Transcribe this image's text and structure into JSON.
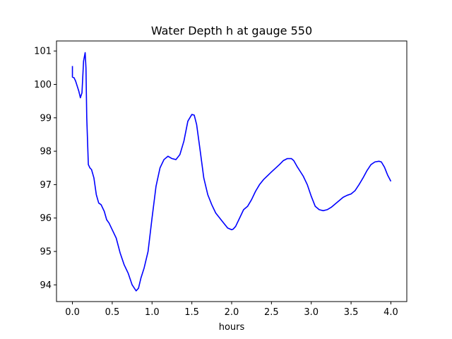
{
  "chart_data": {
    "type": "line",
    "title": "Water Depth h at gauge 550",
    "xlabel": "hours",
    "ylabel": "",
    "xlim": [
      -0.2,
      4.2
    ],
    "ylim": [
      93.5,
      101.3
    ],
    "xticks": [
      0.0,
      0.5,
      1.0,
      1.5,
      2.0,
      2.5,
      3.0,
      3.5,
      4.0
    ],
    "xtick_labels": [
      "0.0",
      "0.5",
      "1.0",
      "1.5",
      "2.0",
      "2.5",
      "3.0",
      "3.5",
      "4.0"
    ],
    "yticks": [
      94,
      95,
      96,
      97,
      98,
      99,
      100,
      101
    ],
    "ytick_labels": [
      "94",
      "95",
      "96",
      "97",
      "98",
      "99",
      "100",
      "101"
    ],
    "grid": false,
    "color": "#0000ff",
    "series": [
      {
        "x": [
          0.0,
          0.0,
          0.02,
          0.04,
          0.06,
          0.08,
          0.1,
          0.12,
          0.14,
          0.16,
          0.17,
          0.18,
          0.2,
          0.22,
          0.24,
          0.27,
          0.3,
          0.33,
          0.36,
          0.4,
          0.43,
          0.46,
          0.5,
          0.55,
          0.6,
          0.65,
          0.7,
          0.75,
          0.8,
          0.83,
          0.86,
          0.9,
          0.95,
          1.0,
          1.05,
          1.1,
          1.15,
          1.2,
          1.25,
          1.3,
          1.35,
          1.4,
          1.45,
          1.5,
          1.53,
          1.56,
          1.6,
          1.65,
          1.7,
          1.75,
          1.8,
          1.85,
          1.9,
          1.95,
          2.0,
          2.02,
          2.05,
          2.1,
          2.15,
          2.2,
          2.25,
          2.3,
          2.35,
          2.4,
          2.5,
          2.6,
          2.65,
          2.7,
          2.75,
          2.78,
          2.82,
          2.86,
          2.9,
          2.95,
          3.0,
          3.05,
          3.1,
          3.15,
          3.2,
          3.25,
          3.3,
          3.35,
          3.4,
          3.45,
          3.5,
          3.55,
          3.6,
          3.65,
          3.7,
          3.75,
          3.8,
          3.85,
          3.88,
          3.92,
          3.96,
          4.0
        ],
        "y": [
          100.55,
          100.22,
          100.2,
          100.1,
          99.95,
          99.8,
          99.6,
          99.75,
          100.7,
          100.95,
          100.5,
          99.0,
          97.6,
          97.5,
          97.45,
          97.2,
          96.7,
          96.45,
          96.4,
          96.2,
          95.95,
          95.85,
          95.65,
          95.4,
          94.95,
          94.6,
          94.35,
          94.0,
          93.82,
          93.9,
          94.2,
          94.5,
          95.0,
          96.0,
          96.95,
          97.5,
          97.75,
          97.85,
          97.78,
          97.75,
          97.9,
          98.3,
          98.9,
          99.1,
          99.08,
          98.8,
          98.1,
          97.2,
          96.7,
          96.4,
          96.15,
          96.0,
          95.85,
          95.7,
          95.65,
          95.67,
          95.75,
          96.0,
          96.25,
          96.35,
          96.55,
          96.8,
          97.0,
          97.15,
          97.38,
          97.6,
          97.72,
          97.78,
          97.78,
          97.72,
          97.55,
          97.4,
          97.25,
          97.0,
          96.65,
          96.35,
          96.25,
          96.22,
          96.25,
          96.32,
          96.42,
          96.52,
          96.62,
          96.68,
          96.72,
          96.82,
          97.0,
          97.2,
          97.42,
          97.6,
          97.68,
          97.7,
          97.68,
          97.52,
          97.28,
          97.1
        ]
      }
    ]
  }
}
